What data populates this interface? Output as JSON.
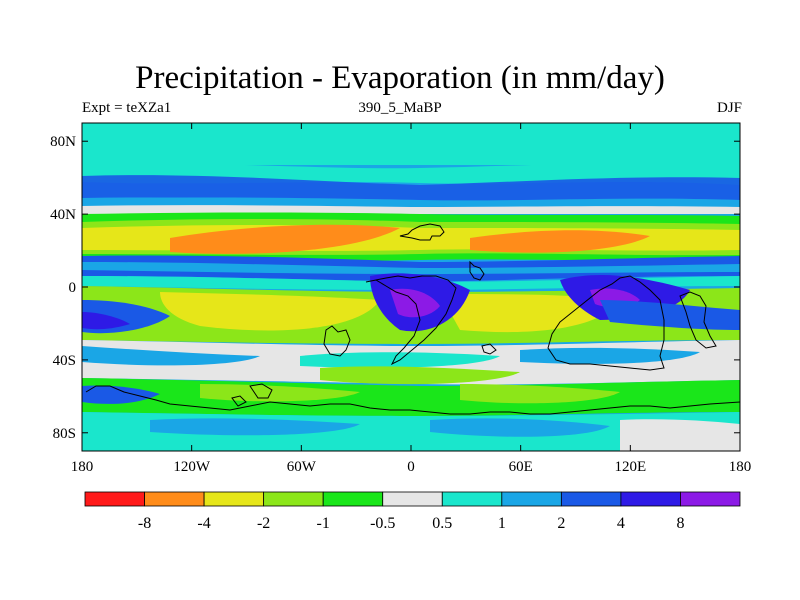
{
  "title": "Precipitation - Evaporation (in mm/day)",
  "subtitle_left": "Expt = teXZa1",
  "subtitle_center": "390_5_MaBP",
  "subtitle_right": "DJF",
  "map": {
    "lon_range": [
      -180,
      180
    ],
    "lat_range": [
      -90,
      90
    ],
    "x_ticks": [
      {
        "value": -180,
        "label": "180"
      },
      {
        "value": -120,
        "label": "120W"
      },
      {
        "value": -60,
        "label": "60W"
      },
      {
        "value": 0,
        "label": "0"
      },
      {
        "value": 60,
        "label": "60E"
      },
      {
        "value": 120,
        "label": "120E"
      },
      {
        "value": 180,
        "label": "180"
      }
    ],
    "y_ticks": [
      {
        "value": 80,
        "label": "80N"
      },
      {
        "value": 40,
        "label": "40N"
      },
      {
        "value": 0,
        "label": "0"
      },
      {
        "value": -40,
        "label": "40S"
      },
      {
        "value": -80,
        "label": "80S"
      }
    ]
  },
  "colorbar": {
    "colors": [
      "#ff1a1a",
      "#ff8c1a",
      "#e6e619",
      "#8ce619",
      "#1ae61a",
      "#e6e6e6",
      "#1ae6cc",
      "#1aa6e6",
      "#1a59e6",
      "#2e1ae6",
      "#8c1ae6"
    ],
    "labels": [
      "-8",
      "-4",
      "-2",
      "-1",
      "-0.5",
      "0.5",
      "1",
      "2",
      "4",
      "8"
    ]
  }
}
